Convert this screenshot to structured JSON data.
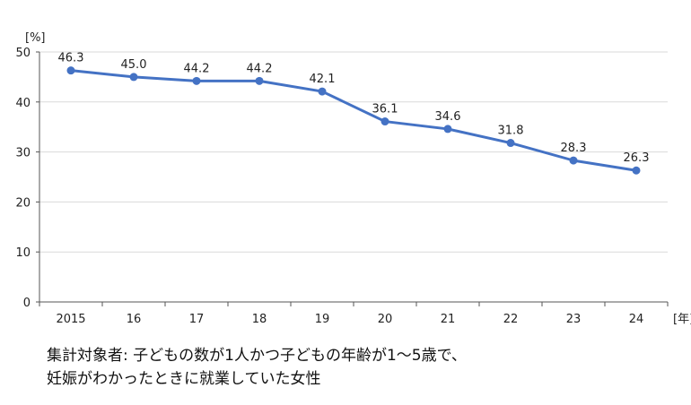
{
  "chart_data": {
    "type": "line",
    "categories": [
      "2015",
      "16",
      "17",
      "18",
      "19",
      "20",
      "21",
      "22",
      "23",
      "24"
    ],
    "series": [
      {
        "values": [
          46.3,
          45.0,
          44.2,
          44.2,
          42.1,
          36.1,
          34.6,
          31.8,
          28.3,
          26.3
        ]
      }
    ],
    "value_labels": [
      "46.3",
      "45.0",
      "44.2",
      "44.2",
      "42.1",
      "36.1",
      "34.6",
      "31.8",
      "28.3",
      "26.3"
    ],
    "ylim": [
      0,
      50
    ],
    "yticks": [
      "0",
      "10",
      "20",
      "30",
      "40",
      "50"
    ],
    "y_unit": "[%]",
    "x_unit": "[年]",
    "grid": "horizontal",
    "line_color": "#4472C4"
  },
  "caption": {
    "line1": "集計対象者: 子どもの数が1人かつ子どもの年齢が1〜5歳で、",
    "line2": "妊娠がわかったときに就業していた女性"
  }
}
